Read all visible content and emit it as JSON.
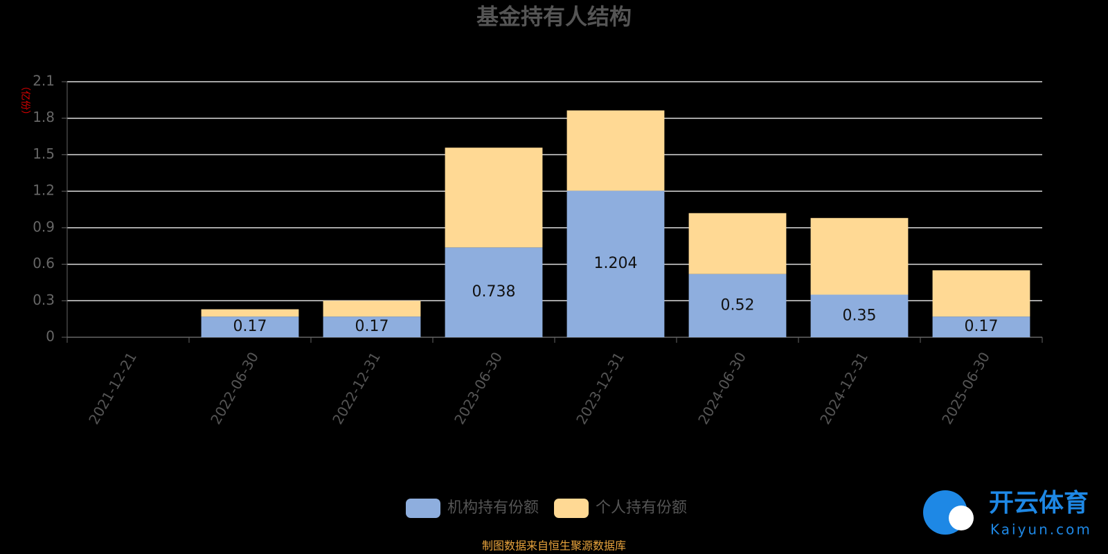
{
  "chart_data": {
    "type": "stacked-bar",
    "title": "基金持有人结构",
    "y_label": "（亿份）",
    "categories": [
      "2021-12-21",
      "2022-06-30",
      "2022-12-31",
      "2023-06-30",
      "2023-12-31",
      "2024-06-30",
      "2024-12-31",
      "2025-06-30"
    ],
    "series": [
      {
        "name": "机构持有份额",
        "color": "#8eaede",
        "show_labels": true,
        "values": [
          null,
          0.17,
          0.17,
          0.738,
          1.204,
          0.52,
          0.35,
          0.17
        ]
      },
      {
        "name": "个人持有份额",
        "color": "#ffd994",
        "show_labels": false,
        "values": [
          null,
          0.06,
          0.13,
          0.82,
          0.66,
          0.5,
          0.63,
          0.38
        ]
      }
    ],
    "ylim": [
      0,
      2.1
    ],
    "yticks": [
      0,
      0.3,
      0.6,
      0.9,
      1.2,
      1.5,
      1.8,
      2.1
    ],
    "grid": true,
    "source": "制图数据来自恒生聚源数据库",
    "watermark": {
      "text": "开云体育",
      "url": "Kaiyun.com"
    }
  }
}
